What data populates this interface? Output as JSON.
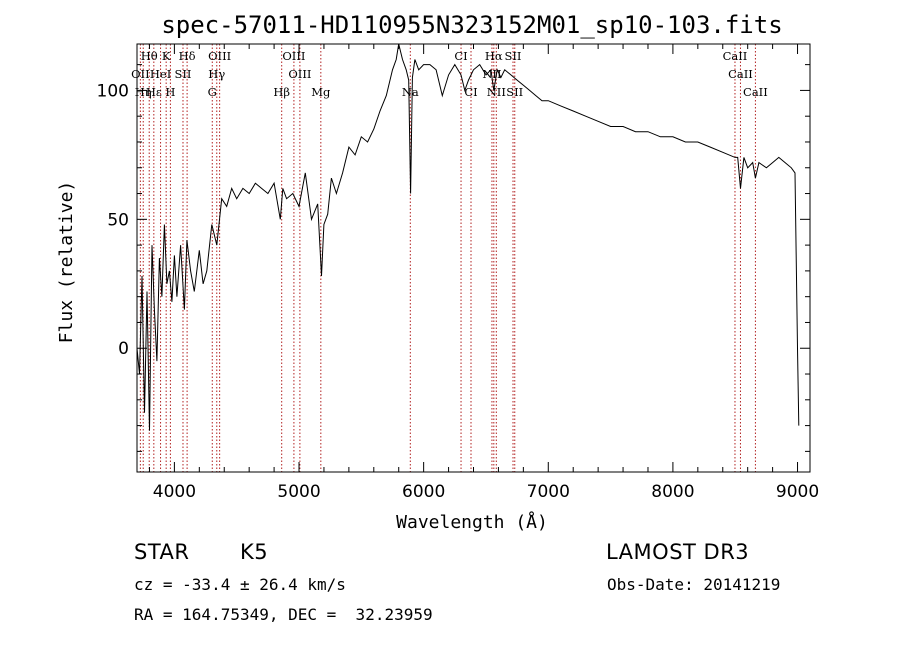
{
  "chart_data": {
    "type": "line",
    "title": "spec-57011-HD110955N323152M01_sp10-103.fits",
    "xlabel": "Wavelength (Å)",
    "ylabel": "Flux (relative)",
    "xlim": [
      3700,
      9100
    ],
    "ylim": [
      -48,
      118
    ],
    "x_ticks": [
      4000,
      5000,
      6000,
      7000,
      8000,
      9000
    ],
    "y_ticks": [
      0,
      50,
      100
    ],
    "grid": false,
    "series": [
      {
        "x": [
          3700,
          3720,
          3740,
          3760,
          3780,
          3800,
          3820,
          3840,
          3860,
          3880,
          3900,
          3920,
          3940,
          3960,
          3980,
          4000,
          4020,
          4050,
          4080,
          4100,
          4130,
          4160,
          4200,
          4230,
          4260,
          4300,
          4340,
          4380,
          4420,
          4460,
          4500,
          4550,
          4600,
          4650,
          4700,
          4750,
          4800,
          4850,
          4870,
          4900,
          4950,
          5000,
          5050,
          5100,
          5150,
          5180,
          5200,
          5230,
          5260,
          5300,
          5350,
          5400,
          5450,
          5500,
          5550,
          5600,
          5650,
          5700,
          5750,
          5780,
          5800,
          5830,
          5860,
          5880,
          5895,
          5910,
          5930,
          5960,
          6000,
          6050,
          6100,
          6150,
          6200,
          6250,
          6300,
          6330,
          6360,
          6400,
          6450,
          6500,
          6540,
          6563,
          6590,
          6620,
          6650,
          6700,
          6750,
          6800,
          6850,
          6900,
          6950,
          7000,
          7100,
          7200,
          7300,
          7400,
          7500,
          7600,
          7700,
          7800,
          7900,
          8000,
          8100,
          8200,
          8300,
          8400,
          8498,
          8520,
          8542,
          8570,
          8600,
          8640,
          8662,
          8690,
          8750,
          8800,
          8850,
          8900,
          8950,
          8980,
          9000,
          9010
        ],
        "y": [
          0,
          -10,
          28,
          -25,
          22,
          -32,
          40,
          15,
          -5,
          35,
          20,
          48,
          25,
          30,
          18,
          36,
          20,
          40,
          15,
          42,
          30,
          22,
          38,
          25,
          30,
          48,
          40,
          58,
          55,
          62,
          58,
          62,
          60,
          64,
          62,
          60,
          64,
          50,
          62,
          58,
          60,
          55,
          68,
          50,
          56,
          28,
          48,
          52,
          66,
          60,
          68,
          78,
          75,
          82,
          80,
          85,
          92,
          98,
          108,
          112,
          118,
          112,
          108,
          104,
          60,
          105,
          112,
          108,
          110,
          110,
          108,
          98,
          106,
          110,
          106,
          100,
          104,
          108,
          110,
          106,
          108,
          100,
          108,
          105,
          108,
          106,
          104,
          102,
          100,
          98,
          96,
          96,
          94,
          92,
          90,
          88,
          86,
          86,
          84,
          84,
          82,
          82,
          80,
          80,
          78,
          76,
          74,
          74,
          62,
          74,
          70,
          72,
          66,
          72,
          70,
          72,
          74,
          72,
          70,
          68,
          0,
          -30
        ],
        "color": "#000000"
      }
    ],
    "spectral_lines": [
      {
        "label": "Hθ",
        "wl": 3798,
        "tier": 0
      },
      {
        "label": "K",
        "wl": 3934,
        "tier": 0
      },
      {
        "label": "Hδ",
        "wl": 4102,
        "tier": 0
      },
      {
        "label": "OIII",
        "wl": 4363,
        "tier": 0
      },
      {
        "label": "OIII",
        "wl": 4959,
        "tier": 0
      },
      {
        "label": "CI",
        "wl": 6300,
        "tier": 0
      },
      {
        "label": "Hα",
        "wl": 6563,
        "tier": 0
      },
      {
        "label": "SII",
        "wl": 6717,
        "tier": 0
      },
      {
        "label": "CaII",
        "wl": 8498,
        "tier": 0
      },
      {
        "label": "OII",
        "wl": 3727,
        "tier": 1
      },
      {
        "label": "HeI",
        "wl": 3889,
        "tier": 1
      },
      {
        "label": "SII",
        "wl": 4069,
        "tier": 1
      },
      {
        "label": "Hγ",
        "wl": 4340,
        "tier": 1
      },
      {
        "label": "OIII",
        "wl": 5007,
        "tier": 1
      },
      {
        "label": "NII",
        "wl": 6548,
        "tier": 1
      },
      {
        "label": "CaII",
        "wl": 8542,
        "tier": 1
      },
      {
        "label": "Hε",
        "wl": 3835,
        "tier": 2
      },
      {
        "label": "Hη",
        "wl": 3750,
        "tier": 2
      },
      {
        "label": "H",
        "wl": 3968,
        "tier": 2
      },
      {
        "label": "G",
        "wl": 4304,
        "tier": 2
      },
      {
        "label": "Hβ",
        "wl": 4861,
        "tier": 2
      },
      {
        "label": "Mg",
        "wl": 5175,
        "tier": 2
      },
      {
        "label": "Na",
        "wl": 5893,
        "tier": 2
      },
      {
        "label": "CI",
        "wl": 6380,
        "tier": 2
      },
      {
        "label": "NII",
        "wl": 6583,
        "tier": 2
      },
      {
        "label": "SII",
        "wl": 6731,
        "tier": 2
      },
      {
        "label": "CaII",
        "wl": 8662,
        "tier": 2
      }
    ]
  },
  "info": {
    "object_class": "STAR",
    "subclass": "K5",
    "survey": "LAMOST DR3",
    "cz": "cz = -33.4 ± 26.4 km/s",
    "obs_date": "Obs-Date: 20141219",
    "coords": "RA = 164.75349, DEC =  32.23959"
  }
}
